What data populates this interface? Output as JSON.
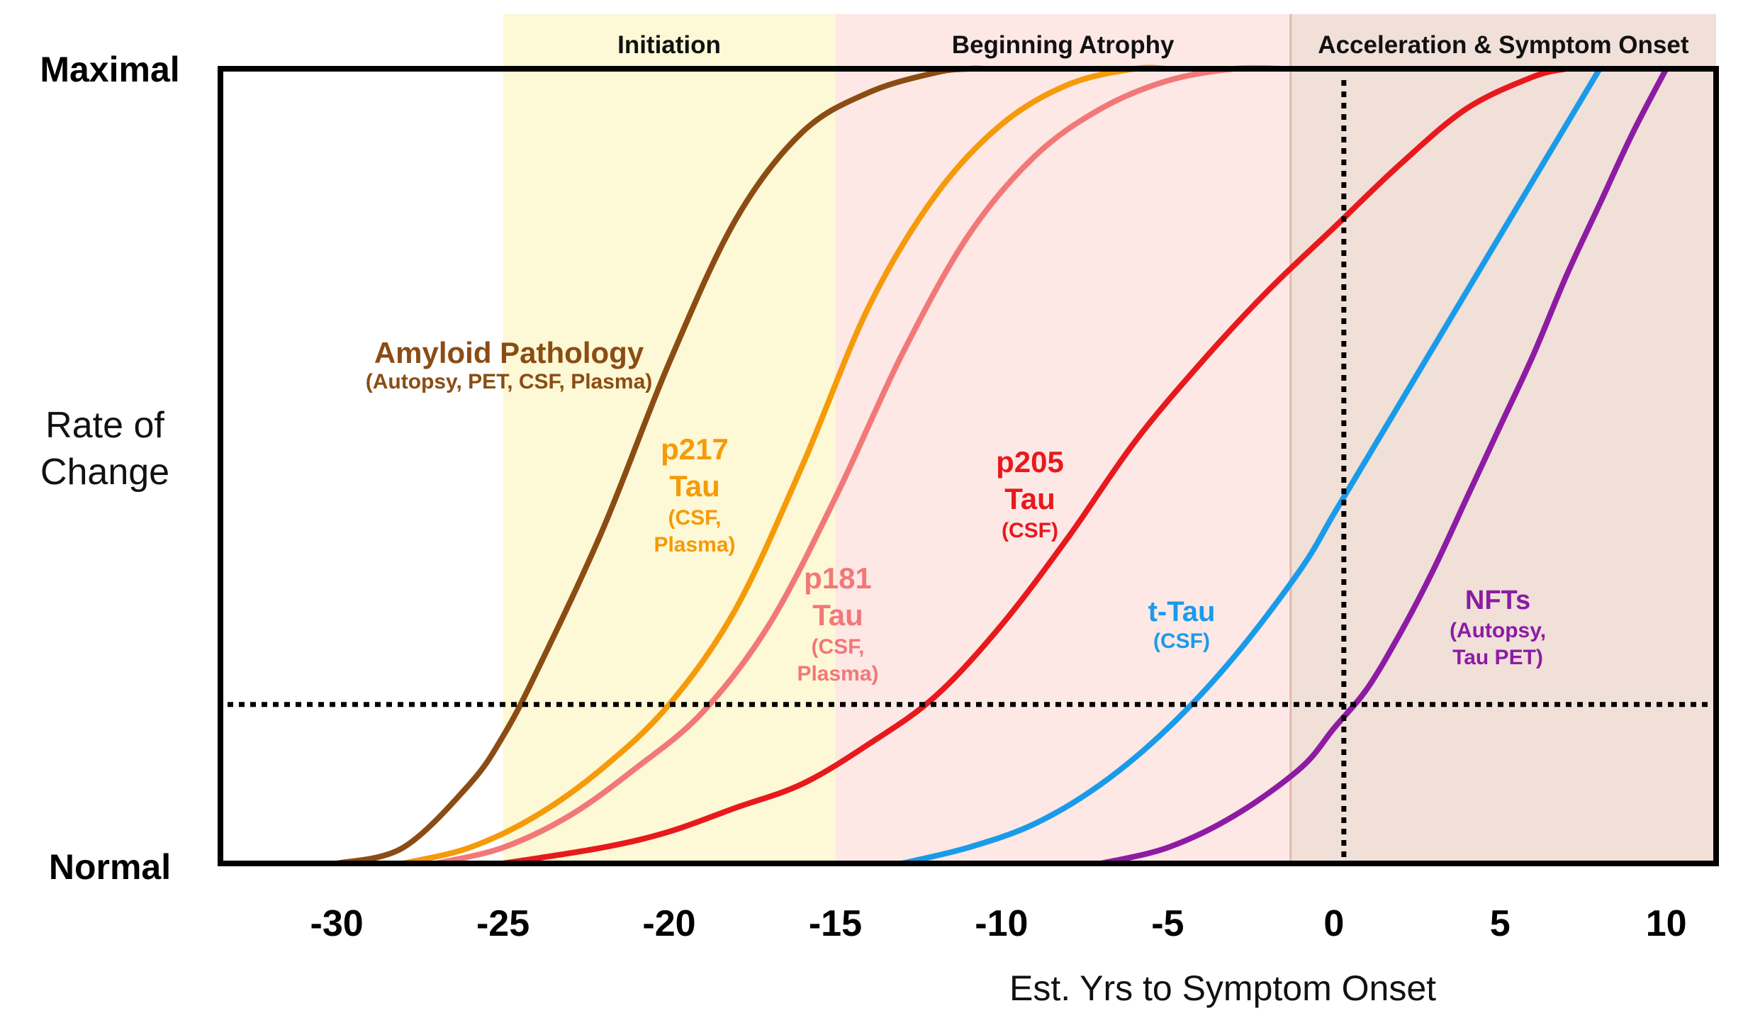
{
  "chart_data": {
    "type": "line",
    "title": "",
    "xlabel": "Est. Yrs to Symptom Onset",
    "ylabel": "Rate of Change",
    "ylabel_lines": [
      "Rate of",
      "Change"
    ],
    "y_top_label": "Maximal",
    "y_bottom_label": "Normal",
    "xlim": [
      -33.5,
      11.5
    ],
    "ylim": [
      0,
      1
    ],
    "xticks": [
      -30,
      -25,
      -20,
      -15,
      -10,
      -5,
      0,
      5,
      10
    ],
    "xtick_labels": [
      "-30",
      "-25",
      "-20",
      "-15",
      "-10",
      "-5",
      "0",
      "5",
      "10"
    ],
    "threshold_level": 0.2,
    "onset_x": 0.3,
    "phases": [
      {
        "name": "Initiation",
        "start": -25,
        "end": -15,
        "color": "#fdf8d5"
      },
      {
        "name": "Beginning Atrophy",
        "start": -15,
        "end": -1.3,
        "color": "#fde8e6"
      },
      {
        "name": "Acceleration & Symptom Onset",
        "start": -1.3,
        "end": 11.5,
        "color": "#f0e0d8"
      }
    ],
    "series": [
      {
        "name": "Amyloid Pathology",
        "sublabel": "(Autopsy, PET, CSF, Plasma)",
        "label_lines": [
          "Amyloid Pathology"
        ],
        "sub_lines": [
          "(Autopsy, PET, CSF, Plasma)"
        ],
        "color": "#8b4c13",
        "x": [
          -30,
          -28,
          -26,
          -25,
          -24,
          -22,
          -20,
          -18,
          -16,
          -14,
          -12,
          -11,
          -10.5
        ],
        "values": [
          0,
          0.02,
          0.1,
          0.16,
          0.24,
          0.42,
          0.63,
          0.81,
          0.92,
          0.97,
          0.995,
          1.0,
          1.0
        ]
      },
      {
        "name": "p217 Tau",
        "sublabel": "(CSF, Plasma)",
        "label_lines": [
          "p217",
          "Tau"
        ],
        "sub_lines": [
          "(CSF,",
          "Plasma)"
        ],
        "color": "#f59a09",
        "x": [
          -28,
          -26,
          -24,
          -22,
          -20,
          -18,
          -16,
          -14,
          -12,
          -10,
          -8,
          -6,
          -5
        ],
        "values": [
          0,
          0.02,
          0.06,
          0.12,
          0.2,
          0.32,
          0.5,
          0.7,
          0.84,
          0.93,
          0.98,
          1.0,
          1.0
        ]
      },
      {
        "name": "p181 Tau",
        "sublabel": "(CSF, Plasma)",
        "label_lines": [
          "p181",
          "Tau"
        ],
        "sub_lines": [
          "(CSF,",
          "Plasma)"
        ],
        "color": "#f27878",
        "x": [
          -27,
          -25,
          -23,
          -21,
          -19,
          -17,
          -15,
          -13,
          -11,
          -9,
          -7,
          -5,
          -3,
          -1.5
        ],
        "values": [
          0,
          0.02,
          0.06,
          0.12,
          0.19,
          0.3,
          0.46,
          0.64,
          0.79,
          0.89,
          0.95,
          0.985,
          1.0,
          1.0
        ]
      },
      {
        "name": "p205 Tau",
        "sublabel": "(CSF)",
        "label_lines": [
          "p205",
          "Tau"
        ],
        "sub_lines": [
          "(CSF)"
        ],
        "color": "#e8191c",
        "x": [
          -25,
          -22,
          -20,
          -18,
          -16,
          -14,
          -12,
          -10,
          -8,
          -6,
          -4,
          -2,
          0,
          2,
          4,
          6,
          7
        ],
        "values": [
          0,
          0.02,
          0.04,
          0.07,
          0.1,
          0.15,
          0.21,
          0.3,
          0.41,
          0.53,
          0.63,
          0.72,
          0.8,
          0.88,
          0.95,
          0.99,
          1.0
        ]
      },
      {
        "name": "t-Tau",
        "sublabel": "(CSF)",
        "label_lines": [
          "t-Tau"
        ],
        "sub_lines": [
          "(CSF)"
        ],
        "color": "#1a9bea",
        "x": [
          -13,
          -11,
          -9,
          -7,
          -5,
          -3,
          -1,
          0,
          1,
          3,
          5,
          7,
          8
        ],
        "values": [
          0,
          0.02,
          0.05,
          0.1,
          0.17,
          0.26,
          0.37,
          0.44,
          0.51,
          0.65,
          0.79,
          0.93,
          1.0
        ]
      },
      {
        "name": "NFTs",
        "sublabel": "(Autopsy, Tau PET)",
        "label_lines": [
          "NFTs"
        ],
        "sub_lines": [
          "(Autopsy,",
          "Tau PET)"
        ],
        "color": "#8d1ba3",
        "x": [
          -7,
          -5,
          -3,
          -1,
          0,
          1,
          2,
          3,
          4,
          5,
          6,
          7,
          8,
          9,
          10
        ],
        "values": [
          0,
          0.02,
          0.06,
          0.12,
          0.17,
          0.22,
          0.29,
          0.37,
          0.46,
          0.55,
          0.64,
          0.74,
          0.83,
          0.92,
          1.0
        ]
      }
    ]
  }
}
